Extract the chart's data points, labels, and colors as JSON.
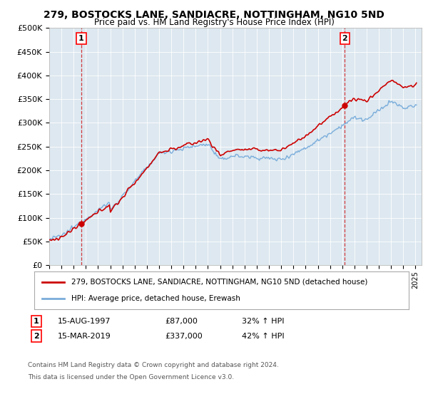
{
  "title": "279, BOSTOCKS LANE, SANDIACRE, NOTTINGHAM, NG10 5ND",
  "subtitle": "Price paid vs. HM Land Registry's House Price Index (HPI)",
  "legend_line1": "279, BOSTOCKS LANE, SANDIACRE, NOTTINGHAM, NG10 5ND (detached house)",
  "legend_line2": "HPI: Average price, detached house, Erewash",
  "annotation1_label": "1",
  "annotation1_date": "15-AUG-1997",
  "annotation1_price": "£87,000",
  "annotation1_hpi": "32% ↑ HPI",
  "annotation2_label": "2",
  "annotation2_date": "15-MAR-2019",
  "annotation2_price": "£337,000",
  "annotation2_hpi": "42% ↑ HPI",
  "footer1": "Contains HM Land Registry data © Crown copyright and database right 2024.",
  "footer2": "This data is licensed under the Open Government Licence v3.0.",
  "sale1_year": 1997.625,
  "sale1_price": 87000,
  "sale2_year": 2019.2,
  "sale2_price": 337000,
  "hpi_color": "#7aaddb",
  "price_color": "#cc0000",
  "background_color": "#dde8f0",
  "plot_bg": "#dde8f0",
  "ylim_min": 0,
  "ylim_max": 500000,
  "xlim_min": 1995,
  "xlim_max": 2025.5
}
